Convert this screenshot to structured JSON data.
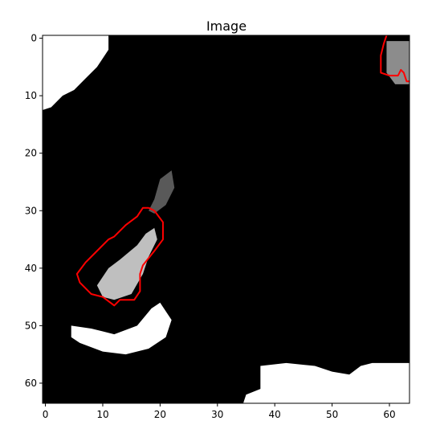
{
  "figure": {
    "title": "Image"
  },
  "chart_data": {
    "type": "heatmap",
    "title": "Image",
    "colormap": "gray",
    "image_size": [
      64,
      64
    ],
    "xlim": [
      -0.5,
      63.5
    ],
    "ylim": [
      63.5,
      -0.5
    ],
    "xticks": [
      0,
      10,
      20,
      30,
      40,
      50,
      60
    ],
    "yticks": [
      0,
      10,
      20,
      30,
      40,
      50,
      60
    ],
    "xlabel": "",
    "ylabel": "",
    "grid": false,
    "bright_regions": [
      {
        "name": "top-left white corner",
        "intensity": 1.0,
        "polygon": [
          [
            -0.5,
            -0.5
          ],
          [
            11,
            -0.5
          ],
          [
            11,
            2
          ],
          [
            9,
            5
          ],
          [
            7,
            7
          ],
          [
            5,
            9
          ],
          [
            3,
            10
          ],
          [
            1,
            12
          ],
          [
            -0.5,
            12.5
          ]
        ]
      },
      {
        "name": "bottom-left white blob",
        "intensity": 1.0,
        "polygon": [
          [
            4.5,
            50
          ],
          [
            8,
            50.5
          ],
          [
            12,
            51.5
          ],
          [
            16,
            50
          ],
          [
            18.5,
            47
          ],
          [
            20,
            46
          ],
          [
            22,
            49
          ],
          [
            21,
            52
          ],
          [
            18,
            54
          ],
          [
            14,
            55
          ],
          [
            10,
            54.5
          ],
          [
            6,
            53
          ],
          [
            4.5,
            52
          ]
        ]
      },
      {
        "name": "bottom-right white area",
        "intensity": 1.0,
        "polygon": [
          [
            34.5,
            63.5
          ],
          [
            35,
            62
          ],
          [
            37.5,
            61
          ],
          [
            37.5,
            57
          ],
          [
            42,
            56.5
          ],
          [
            47,
            57
          ],
          [
            50,
            58
          ],
          [
            53,
            58.5
          ],
          [
            55,
            57
          ],
          [
            57,
            56.5
          ],
          [
            63.5,
            56.5
          ],
          [
            63.5,
            63.5
          ]
        ]
      },
      {
        "name": "central bright streak",
        "intensity": 0.75,
        "polygon": [
          [
            9,
            43
          ],
          [
            11,
            40
          ],
          [
            13,
            38.5
          ],
          [
            16,
            36
          ],
          [
            17.5,
            34
          ],
          [
            19,
            33
          ],
          [
            19.5,
            35
          ],
          [
            18,
            38
          ],
          [
            17,
            41
          ],
          [
            15,
            44.5
          ],
          [
            12,
            45.5
          ],
          [
            10,
            45
          ]
        ]
      },
      {
        "name": "upper grey patch",
        "intensity": 0.35,
        "polygon": [
          [
            18,
            30
          ],
          [
            19,
            28
          ],
          [
            20,
            24.5
          ],
          [
            22,
            23
          ],
          [
            22.5,
            26
          ],
          [
            21,
            29
          ],
          [
            19,
            30.5
          ]
        ]
      },
      {
        "name": "top-right grey patch",
        "intensity": 0.55,
        "polygon": [
          [
            59.5,
            0.5
          ],
          [
            63.5,
            0.5
          ],
          [
            63.5,
            8
          ],
          [
            61,
            8
          ],
          [
            59.5,
            6
          ]
        ]
      }
    ],
    "contours": [
      {
        "color": "#ff0000",
        "points": [
          [
            18,
            29.5
          ],
          [
            19,
            30
          ],
          [
            20.5,
            32
          ],
          [
            20.5,
            35
          ],
          [
            19,
            37
          ],
          [
            17,
            39.5
          ],
          [
            16.5,
            41
          ],
          [
            16.5,
            44
          ],
          [
            15.5,
            45.5
          ],
          [
            13,
            45.5
          ],
          [
            12,
            46.5
          ],
          [
            10,
            45
          ],
          [
            8,
            44.5
          ],
          [
            6,
            42.5
          ],
          [
            5.5,
            41
          ],
          [
            7,
            39
          ],
          [
            9,
            37
          ],
          [
            11,
            35
          ],
          [
            12,
            34.5
          ],
          [
            14,
            32.5
          ],
          [
            16,
            31
          ],
          [
            17,
            29.5
          ],
          [
            18,
            29.5
          ]
        ]
      },
      {
        "color": "#ff0000",
        "points": [
          [
            59.5,
            -0.5
          ],
          [
            59,
            1
          ],
          [
            58.5,
            3
          ],
          [
            58.5,
            6
          ],
          [
            60,
            6.5
          ],
          [
            61.5,
            6.5
          ],
          [
            62,
            5.5
          ],
          [
            62.5,
            6
          ],
          [
            63,
            7.5
          ],
          [
            63.5,
            7.5
          ]
        ]
      }
    ]
  }
}
